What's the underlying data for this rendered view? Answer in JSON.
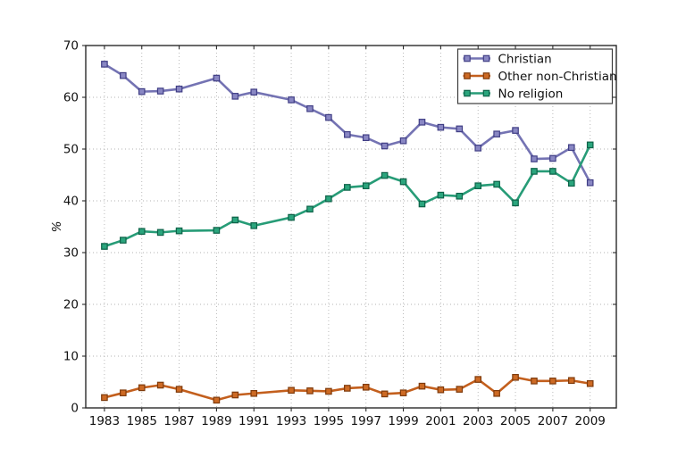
{
  "chart_data": {
    "type": "line",
    "title": "",
    "xlabel": "",
    "ylabel": "%",
    "xlim": [
      1982,
      2010.4
    ],
    "ylim": [
      0,
      70
    ],
    "xticks": [
      1983,
      1985,
      1987,
      1989,
      1991,
      1993,
      1995,
      1997,
      1999,
      2001,
      2003,
      2005,
      2007,
      2009
    ],
    "yticks": [
      0,
      10,
      20,
      30,
      40,
      50,
      60,
      70
    ],
    "grid": "dotted",
    "grid_color": "#b3b3b3",
    "axis_color": "#2a2a2a",
    "legend_position": "upper right",
    "x": [
      1983,
      1984,
      1985,
      1986,
      1987,
      1989,
      1990,
      1991,
      1993,
      1994,
      1995,
      1996,
      1997,
      1998,
      1999,
      2000,
      2001,
      2002,
      2003,
      2004,
      2005,
      2006,
      2007,
      2008,
      2009
    ],
    "series": [
      {
        "name": "Christian",
        "line_color": "#7473b3",
        "marker_fill": "#8987c3",
        "marker_edge": "#403e85",
        "values": [
          66.4,
          64.2,
          61.1,
          61.2,
          61.6,
          63.7,
          60.2,
          61.0,
          59.5,
          57.8,
          56.1,
          52.8,
          52.2,
          50.6,
          51.6,
          55.2,
          54.2,
          53.9,
          50.2,
          52.9,
          53.6,
          48.1,
          48.2,
          50.3,
          43.5
        ]
      },
      {
        "name": "Other non-Christian",
        "line_color": "#c35f1d",
        "marker_fill": "#cd6a24",
        "marker_edge": "#7e3a0b",
        "values": [
          2.0,
          2.9,
          3.9,
          4.4,
          3.6,
          1.5,
          2.5,
          2.8,
          3.4,
          3.3,
          3.2,
          3.8,
          4.0,
          2.7,
          2.9,
          4.2,
          3.5,
          3.6,
          5.5,
          2.8,
          5.9,
          5.2,
          5.2,
          5.3,
          4.7
        ]
      },
      {
        "name": "No religion",
        "line_color": "#279c77",
        "marker_fill": "#2ba57d",
        "marker_edge": "#0d6248",
        "values": [
          31.2,
          32.4,
          34.1,
          33.9,
          34.2,
          34.3,
          36.3,
          35.2,
          36.8,
          38.4,
          40.4,
          42.6,
          42.9,
          44.9,
          43.7,
          39.4,
          41.1,
          40.9,
          42.9,
          43.2,
          39.6,
          45.7,
          45.7,
          43.4,
          50.8
        ]
      }
    ]
  }
}
